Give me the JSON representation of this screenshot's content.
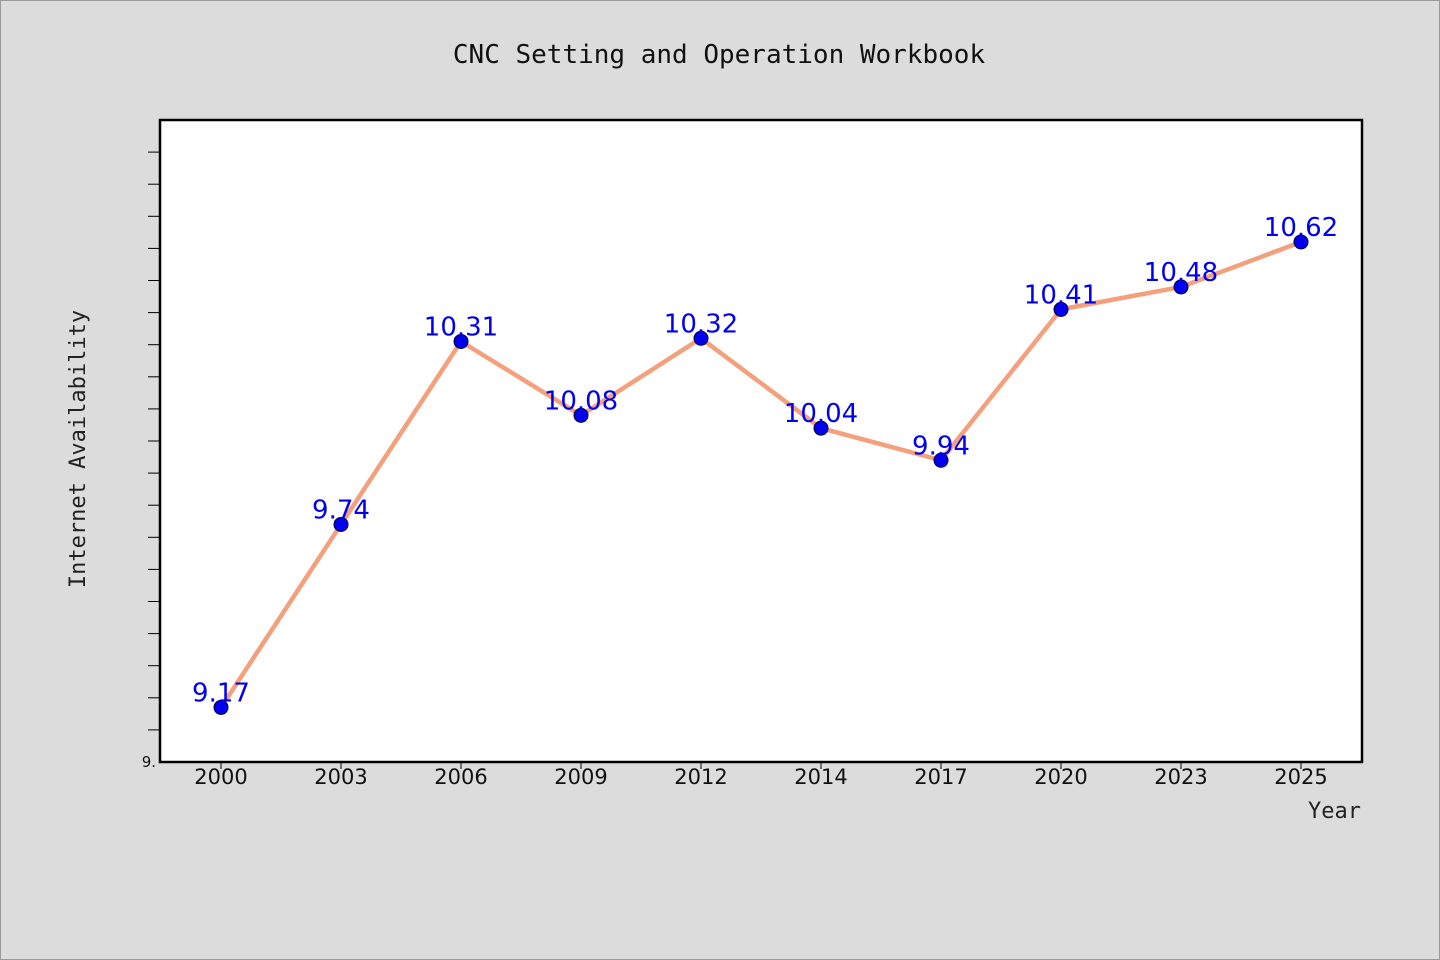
{
  "chart_data": {
    "type": "line",
    "title": "CNC Setting and Operation Workbook",
    "xlabel": "Year",
    "ylabel": "Internet Availability",
    "categories": [
      "2000",
      "2003",
      "2006",
      "2009",
      "2012",
      "2014",
      "2017",
      "2020",
      "2023",
      "2025"
    ],
    "series": [
      {
        "values": [
          9.17,
          9.74,
          10.31,
          10.08,
          10.32,
          10.04,
          9.94,
          10.41,
          10.48,
          10.62
        ]
      }
    ],
    "y_tick_labels": [
      "9."
    ],
    "ylim": [
      9.0,
      11.0
    ],
    "grid": false,
    "line_color": "#f4a07c",
    "marker_color": "#0000ee",
    "label_color": "#0000ee"
  }
}
